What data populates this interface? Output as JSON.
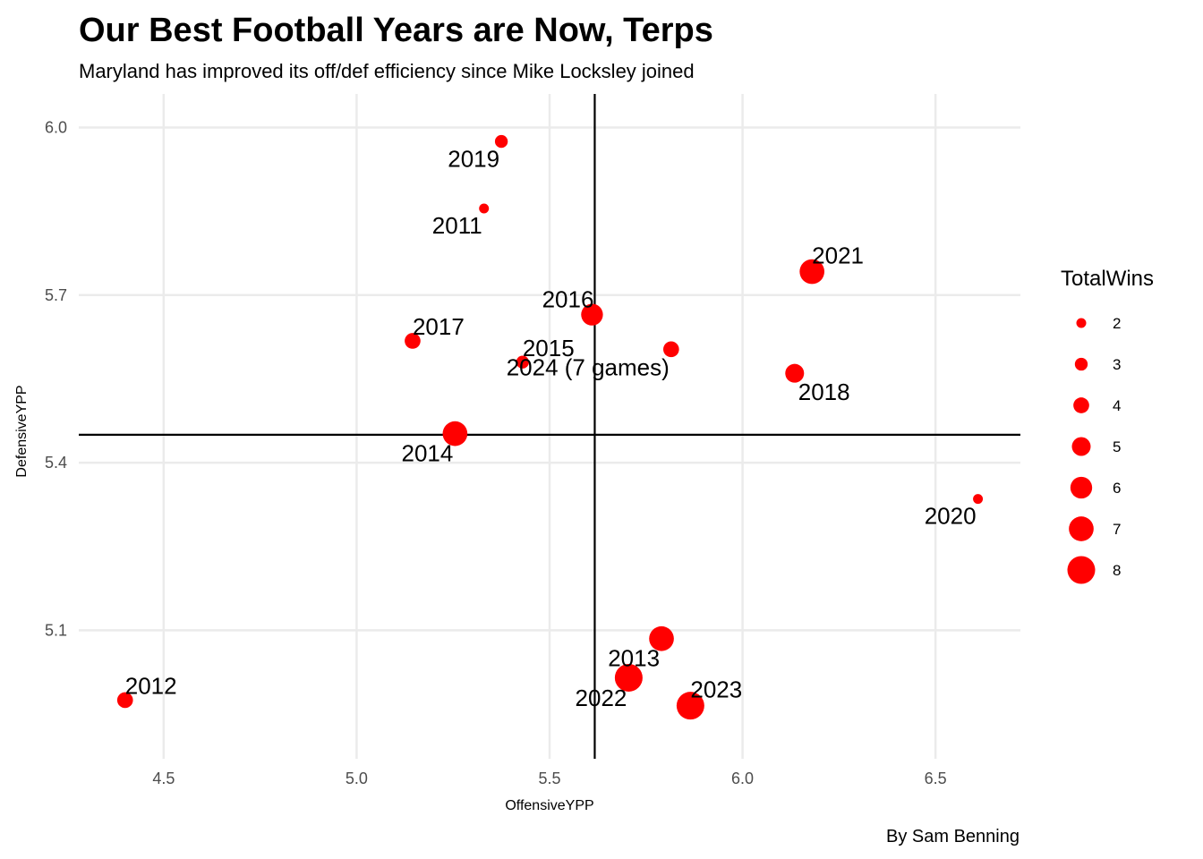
{
  "chart_data": {
    "type": "scatter",
    "title": "Our Best Football Years are Now, Terps",
    "subtitle": "Maryland has improved its off/def efficiency since Mike Locksley joined",
    "caption": "By Sam Benning",
    "xlabel": "OffensiveYPP",
    "ylabel": "DefensiveYPP",
    "xlim": [
      4.28,
      6.72
    ],
    "ylim": [
      4.87,
      6.06
    ],
    "x_ticks": [
      "4.5",
      "5.0",
      "5.5",
      "6.0",
      "6.5"
    ],
    "x_tick_values": [
      4.5,
      5.0,
      5.5,
      6.0,
      6.5
    ],
    "y_ticks": [
      "5.1",
      "5.4",
      "5.7",
      "6.0"
    ],
    "y_tick_values": [
      5.1,
      5.4,
      5.7,
      6.0
    ],
    "grid": true,
    "point_color": "#ff0000",
    "reference_lines": {
      "x": 5.617,
      "y": 5.45
    },
    "size_legend": {
      "title": "TotalWins",
      "values": [
        2,
        3,
        4,
        5,
        6,
        7,
        8
      ],
      "labels": [
        "2",
        "3",
        "4",
        "5",
        "6",
        "7",
        "8"
      ],
      "placement": "right"
    },
    "points": [
      {
        "label": "2011",
        "x": 5.33,
        "y": 5.855,
        "wins": 2,
        "label_pos": "bottom-left"
      },
      {
        "label": "2012",
        "x": 4.4,
        "y": 4.975,
        "wins": 4,
        "label_pos": "top-right"
      },
      {
        "label": "2013",
        "x": 5.79,
        "y": 5.085,
        "wins": 7,
        "label_pos": "bottom-left"
      },
      {
        "label": "2014",
        "x": 5.255,
        "y": 5.452,
        "wins": 7,
        "label_pos": "bottom-left"
      },
      {
        "label": "2015",
        "x": 5.43,
        "y": 5.58,
        "wins": 3,
        "label_pos": "top-right"
      },
      {
        "label": "2016",
        "x": 5.61,
        "y": 5.665,
        "wins": 6,
        "label_pos": "top-left"
      },
      {
        "label": "2017",
        "x": 5.145,
        "y": 5.618,
        "wins": 4,
        "label_pos": "top-right"
      },
      {
        "label": "2018",
        "x": 6.135,
        "y": 5.56,
        "wins": 5,
        "label_pos": "bottom-right"
      },
      {
        "label": "2019",
        "x": 5.375,
        "y": 5.975,
        "wins": 3,
        "label_pos": "bottom-left"
      },
      {
        "label": "2020",
        "x": 6.61,
        "y": 5.335,
        "wins": 2,
        "label_pos": "bottom-left"
      },
      {
        "label": "2021",
        "x": 6.18,
        "y": 5.742,
        "wins": 7,
        "label_pos": "top-right"
      },
      {
        "label": "2022",
        "x": 5.705,
        "y": 5.015,
        "wins": 8,
        "label_pos": "bottom-left"
      },
      {
        "label": "2023",
        "x": 5.865,
        "y": 4.965,
        "wins": 8,
        "label_pos": "top-right"
      },
      {
        "label": "2024 (7 games)",
        "x": 5.815,
        "y": 5.603,
        "wins": 4,
        "label_pos": "bottom-left"
      }
    ]
  }
}
